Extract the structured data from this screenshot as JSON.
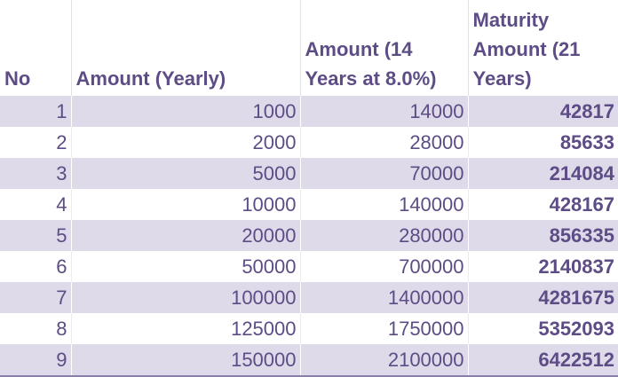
{
  "table": {
    "headers": [
      "No",
      "Amount (Yearly)",
      "Amount (14 Years at 8.0%)",
      "Maturity Amount (21 Years)"
    ],
    "rows": [
      [
        1,
        1000,
        14000,
        42817
      ],
      [
        2,
        2000,
        28000,
        85633
      ],
      [
        3,
        5000,
        70000,
        214084
      ],
      [
        4,
        10000,
        140000,
        428167
      ],
      [
        5,
        20000,
        280000,
        856335
      ],
      [
        6,
        50000,
        700000,
        2140837
      ],
      [
        7,
        100000,
        1400000,
        4281675
      ],
      [
        8,
        125000,
        1750000,
        5352093
      ],
      [
        9,
        150000,
        2100000,
        6422512
      ]
    ]
  }
}
